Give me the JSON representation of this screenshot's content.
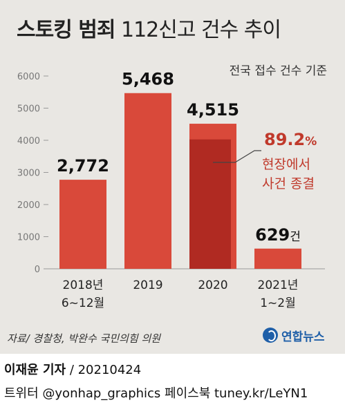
{
  "title": {
    "bold": "스토킹 범죄",
    "rest": "112신고 건수 추이"
  },
  "basis_note": "전국 접수 건수 기준",
  "chart_data": {
    "type": "bar",
    "title": "스토킹 범죄 112신고 건수 추이",
    "categories": [
      {
        "line1": "2018년",
        "line2": "6~12월"
      },
      {
        "line1": "2019",
        "line2": ""
      },
      {
        "line1": "2020",
        "line2": ""
      },
      {
        "line1": "2021년",
        "line2": "1~2월"
      }
    ],
    "values": [
      2772,
      5468,
      4515,
      629
    ],
    "value_labels": [
      "2,772",
      "5,468",
      "4,515",
      "629"
    ],
    "last_value_unit": "건",
    "ylim": [
      0,
      6000
    ],
    "yticks": [
      "0",
      "1000",
      "2000",
      "3000",
      "4000",
      "5000",
      "6000"
    ],
    "ytick_values": [
      0,
      1000,
      2000,
      3000,
      4000,
      5000,
      6000
    ],
    "grid": false,
    "highlight": {
      "category_index": 2,
      "percent": "89.2",
      "percent_sign": "%",
      "share": 0.892,
      "line1": "현장에서",
      "line2": "사건 종결"
    }
  },
  "colors": {
    "bar": "#d9493a",
    "highlight": "#b02a22",
    "annotation": "#c0392b",
    "panel": "#e9e7e3",
    "axis_text": "#777777"
  },
  "source": "자료/ 경찰청, 박완수 국민의힘 의원",
  "logo": {
    "icon": "yonhap-logo-icon",
    "text": "연합뉴스"
  },
  "credit": {
    "author": "이재윤 기자",
    "date": "/ 20210424",
    "social": "트위터 @yonhap_graphics  페이스북 tuney.kr/LeYN1"
  }
}
